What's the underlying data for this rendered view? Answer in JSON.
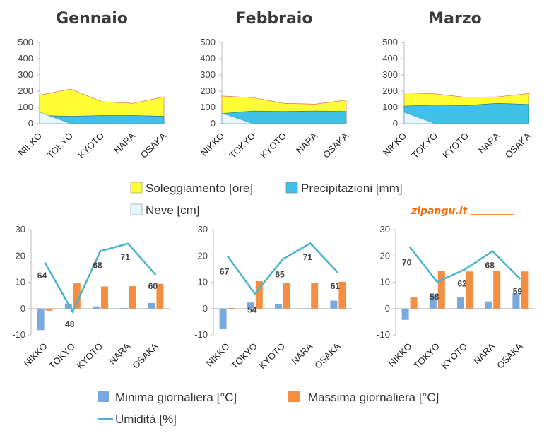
{
  "brand": {
    "text": "zipangu.it"
  },
  "categories": [
    "NIKKO",
    "TOKYO",
    "KYOTO",
    "NARA",
    "OSAKA"
  ],
  "legend_top": [
    {
      "label": "Soleggiamento [ore]",
      "color": "#fffd34"
    },
    {
      "label": "Precipitazioni [mm]",
      "color": "#3fc0e6"
    },
    {
      "label": "Neve [cm]",
      "color": "#e8f6fd"
    }
  ],
  "legend_bottom": [
    {
      "label": "Minima giornaliera [°C]",
      "color": "#7aa8df"
    },
    {
      "label": "Massima giornaliera  [°C]",
      "color": "#f28f42"
    },
    {
      "label": "Umidità [%]",
      "color": "#4ab3cf"
    }
  ],
  "chart_data": [
    {
      "type": "area",
      "title": "Gennaio",
      "categories": [
        "NIKKO",
        "TOKYO",
        "KYOTO",
        "NARA",
        "OSAKA"
      ],
      "ylim": [
        0,
        500
      ],
      "yticks": [
        0,
        100,
        200,
        300,
        400,
        500
      ],
      "series": [
        {
          "name": "Soleggiamento [ore]",
          "values": [
            175,
            213,
            135,
            125,
            165
          ]
        },
        {
          "name": "Precipitazioni [mm]",
          "values": [
            50,
            45,
            50,
            50,
            45
          ]
        },
        {
          "name": "Neve [cm]",
          "values": [
            70,
            0,
            0,
            0,
            0
          ]
        }
      ]
    },
    {
      "type": "area",
      "title": "Febbraio",
      "categories": [
        "NIKKO",
        "TOKYO",
        "KYOTO",
        "NARA",
        "OSAKA"
      ],
      "ylim": [
        0,
        500
      ],
      "yticks": [
        0,
        100,
        200,
        300,
        400,
        500
      ],
      "series": [
        {
          "name": "Soleggiamento [ore]",
          "values": [
            170,
            160,
            125,
            120,
            145
          ]
        },
        {
          "name": "Precipitazioni [mm]",
          "values": [
            62,
            78,
            75,
            78,
            75
          ]
        },
        {
          "name": "Neve [cm]",
          "values": [
            65,
            0,
            0,
            0,
            0
          ]
        }
      ]
    },
    {
      "type": "area",
      "title": "Marzo",
      "categories": [
        "NIKKO",
        "TOKYO",
        "KYOTO",
        "NARA",
        "OSAKA"
      ],
      "ylim": [
        0,
        500
      ],
      "yticks": [
        0,
        100,
        200,
        300,
        400,
        500
      ],
      "series": [
        {
          "name": "Soleggiamento [ore]",
          "values": [
            190,
            183,
            162,
            165,
            185
          ]
        },
        {
          "name": "Precipitazioni [mm]",
          "values": [
            108,
            115,
            112,
            125,
            118
          ]
        },
        {
          "name": "Neve [cm]",
          "values": [
            70,
            0,
            0,
            0,
            0
          ]
        }
      ]
    },
    {
      "type": "bar",
      "categories": [
        "NIKKO",
        "TOKYO",
        "KYOTO",
        "NARA",
        "OSAKA"
      ],
      "ylim": [
        -10,
        30
      ],
      "yticks": [
        -10,
        0,
        10,
        20,
        30
      ],
      "series": [
        {
          "name": "Minima giornaliera [°C]",
          "values": [
            -8.2,
            1.8,
            0.8,
            0.2,
            2.1
          ]
        },
        {
          "name": "Massima giornaliera  [°C]",
          "values": [
            -0.8,
            9.6,
            8.4,
            8.5,
            9.4
          ]
        },
        {
          "name": "Umidità [%]",
          "type": "line",
          "values": [
            64,
            48,
            68,
            71,
            60
          ],
          "plot": [
            17.5,
            -1.2,
            21.8,
            24.7,
            12.8
          ],
          "label_y": [
            12.5,
            -6,
            16.5,
            19.5,
            8.5
          ]
        }
      ]
    },
    {
      "type": "bar",
      "categories": [
        "NIKKO",
        "TOKYO",
        "KYOTO",
        "NARA",
        "OSAKA"
      ],
      "ylim": [
        -10,
        30
      ],
      "yticks": [
        -10,
        0,
        10,
        20,
        30
      ],
      "series": [
        {
          "name": "Minima giornaliera [°C]",
          "values": [
            -7.8,
            2.3,
            1.6,
            0.1,
            3.0
          ]
        },
        {
          "name": "Massima giornaliera  [°C]",
          "values": [
            0.2,
            10.4,
            9.8,
            9.7,
            10.2
          ]
        },
        {
          "name": "Umidità [%]",
          "type": "line",
          "values": [
            67,
            54,
            65,
            71,
            61
          ],
          "plot": [
            20.1,
            5.6,
            18.7,
            24.8,
            13.6
          ],
          "label_y": [
            14,
            -0.5,
            13,
            19.5,
            8.5
          ]
        }
      ]
    },
    {
      "type": "bar",
      "categories": [
        "NIKKO",
        "TOKYO",
        "KYOTO",
        "NARA",
        "OSAKA"
      ],
      "ylim": [
        -10,
        30
      ],
      "yticks": [
        -10,
        0,
        10,
        20,
        30
      ],
      "series": [
        {
          "name": "Minima giornaliera [°C]",
          "values": [
            -4.3,
            5.2,
            4.2,
            2.7,
            5.7
          ]
        },
        {
          "name": "Massima giornaliera  [°C]",
          "values": [
            4.2,
            14.2,
            14.1,
            14.2,
            14.1
          ]
        },
        {
          "name": "Umidità [%]",
          "type": "line",
          "values": [
            70,
            58,
            62,
            68,
            59
          ],
          "plot": [
            23.5,
            10.1,
            14.9,
            21.8,
            11.2
          ],
          "label_y": [
            17.5,
            4.5,
            9.5,
            16.5,
            6.5
          ]
        }
      ]
    }
  ]
}
